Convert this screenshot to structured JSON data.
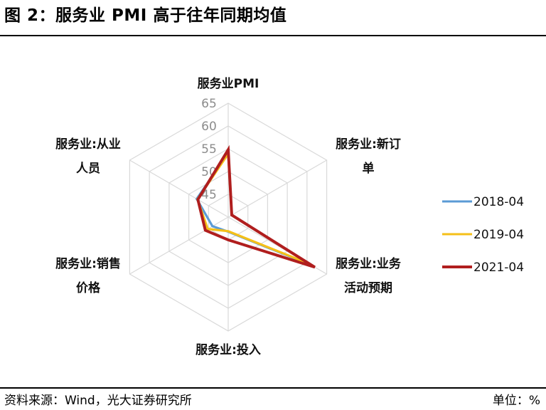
{
  "title": "图 2：服务业 PMI 高于往年同期均值",
  "source": "资料来源：Wind，光大证券研究所",
  "unit_label": "单位：%",
  "chart_data": {
    "type": "radar",
    "axes": [
      {
        "name": "服务业PMI",
        "lines": [
          "服务业PMI"
        ]
      },
      {
        "name": "服务业:新订单",
        "lines": [
          "服务业:新订",
          "单"
        ]
      },
      {
        "name": "服务业:业务活动预期",
        "lines": [
          "服务业:业务",
          "活动预期"
        ]
      },
      {
        "name": "服务业:投入",
        "lines": [
          "服务业:投入"
        ]
      },
      {
        "name": "服务业:销售价格",
        "lines": [
          "服务业:销售",
          "价格"
        ]
      },
      {
        "name": "服务业:从业人员",
        "lines": [
          "服务业:从业",
          "人员"
        ]
      }
    ],
    "scale": {
      "min": 40,
      "max": 65,
      "ticks": [
        45,
        50,
        55,
        60,
        65
      ]
    },
    "legend_position": "right",
    "series": [
      {
        "name": "2018-04",
        "color": "#5b9bd5",
        "values": [
          54.0,
          40.9,
          61.0,
          43.2,
          44.0,
          48.0
        ]
      },
      {
        "name": "2019-04",
        "color": "#f5c018",
        "values": [
          53.9,
          40.9,
          60.4,
          43.1,
          45.2,
          47.8
        ]
      },
      {
        "name": "2021-04",
        "color": "#b01e1e",
        "values": [
          54.8,
          40.9,
          62.0,
          45.0,
          45.8,
          47.7
        ]
      }
    ]
  }
}
